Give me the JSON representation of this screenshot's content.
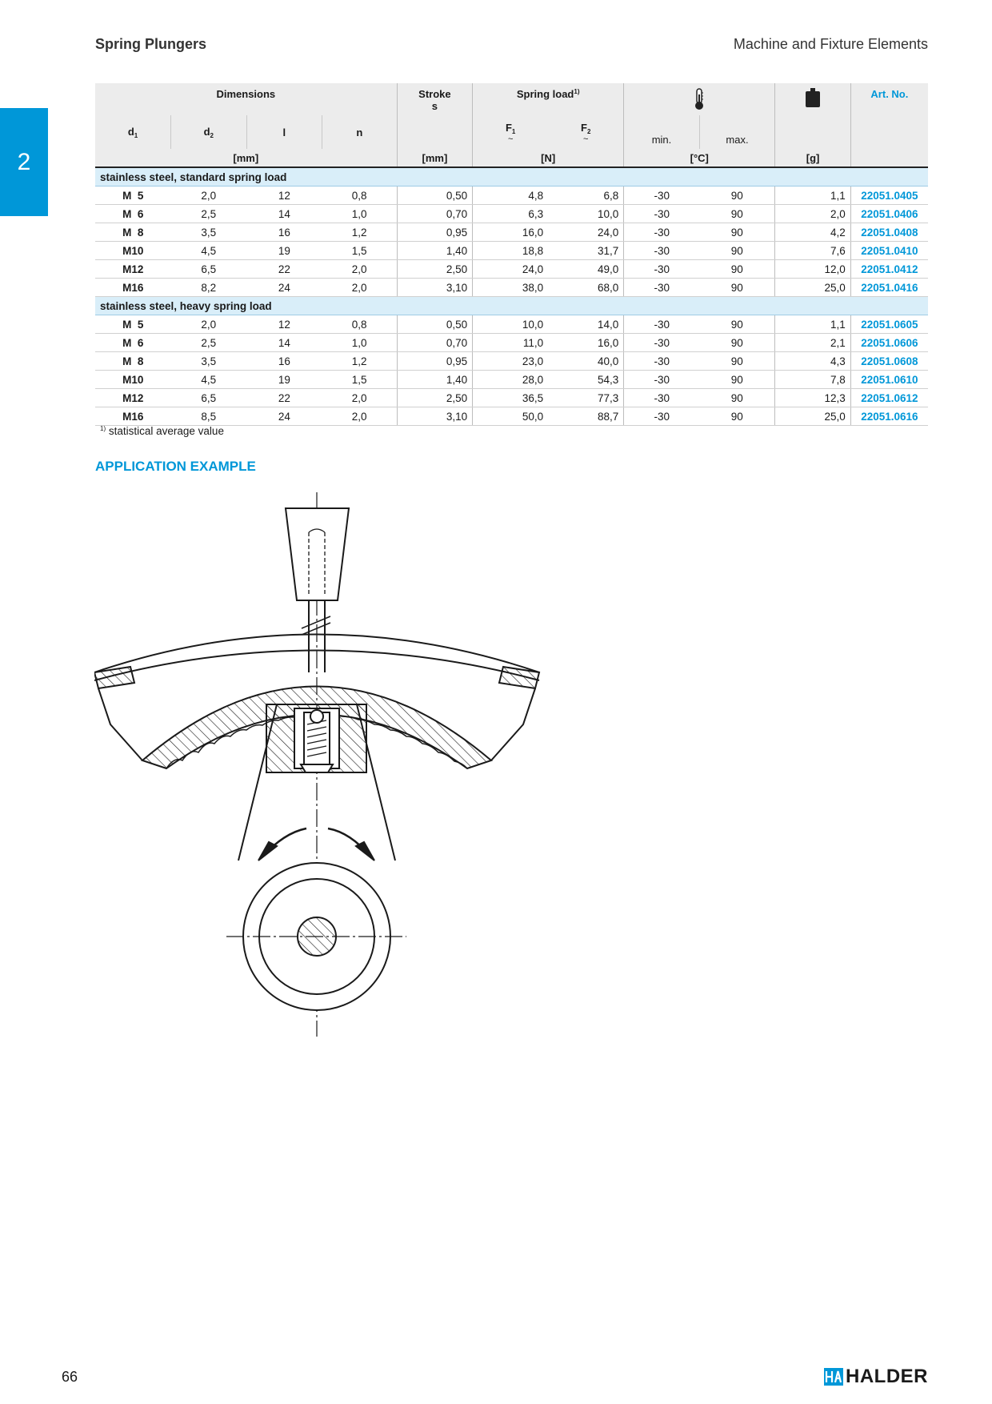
{
  "header": {
    "left": "Spring Plungers",
    "right": "Machine and Fixture Elements"
  },
  "chapter_tab": "2",
  "table": {
    "group_dimensions": "Dimensions",
    "stroke_label": "Stroke",
    "stroke_symbol": "s",
    "spring_load_label": "Spring load",
    "spring_load_note": "1)",
    "art_no_label": "Art. No.",
    "cols": {
      "d1": "d",
      "d1_sub": "1",
      "d2": "d",
      "d2_sub": "2",
      "l": "l",
      "n": "n",
      "f1": "F",
      "f1_sub": "1",
      "f1_tilde": "~",
      "f2": "F",
      "f2_sub": "2",
      "f2_tilde": "~",
      "min": "min.",
      "max": "max."
    },
    "units": {
      "dims": "[mm]",
      "stroke": "[mm]",
      "load": "[N]",
      "temp": "[°C]",
      "weight": "[g]"
    },
    "icons": {
      "temperature": "thermometer-icon",
      "weight": "weight-icon"
    },
    "groups": [
      {
        "title": "stainless steel, standard spring load",
        "rows": [
          [
            "M  5",
            "2,0",
            "12",
            "0,8",
            "0,50",
            "4,8",
            "6,8",
            "-30",
            "90",
            "1,1",
            "22051.0405"
          ],
          [
            "M  6",
            "2,5",
            "14",
            "1,0",
            "0,70",
            "6,3",
            "10,0",
            "-30",
            "90",
            "2,0",
            "22051.0406"
          ],
          [
            "M  8",
            "3,5",
            "16",
            "1,2",
            "0,95",
            "16,0",
            "24,0",
            "-30",
            "90",
            "4,2",
            "22051.0408"
          ],
          [
            "M10",
            "4,5",
            "19",
            "1,5",
            "1,40",
            "18,8",
            "31,7",
            "-30",
            "90",
            "7,6",
            "22051.0410"
          ],
          [
            "M12",
            "6,5",
            "22",
            "2,0",
            "2,50",
            "24,0",
            "49,0",
            "-30",
            "90",
            "12,0",
            "22051.0412"
          ],
          [
            "M16",
            "8,2",
            "24",
            "2,0",
            "3,10",
            "38,0",
            "68,0",
            "-30",
            "90",
            "25,0",
            "22051.0416"
          ]
        ]
      },
      {
        "title": "stainless steel, heavy spring load",
        "rows": [
          [
            "M  5",
            "2,0",
            "12",
            "0,8",
            "0,50",
            "10,0",
            "14,0",
            "-30",
            "90",
            "1,1",
            "22051.0605"
          ],
          [
            "M  6",
            "2,5",
            "14",
            "1,0",
            "0,70",
            "11,0",
            "16,0",
            "-30",
            "90",
            "2,1",
            "22051.0606"
          ],
          [
            "M  8",
            "3,5",
            "16",
            "1,2",
            "0,95",
            "23,0",
            "40,0",
            "-30",
            "90",
            "4,3",
            "22051.0608"
          ],
          [
            "M10",
            "4,5",
            "19",
            "1,5",
            "1,40",
            "28,0",
            "54,3",
            "-30",
            "90",
            "7,8",
            "22051.0610"
          ],
          [
            "M12",
            "6,5",
            "22",
            "2,0",
            "2,50",
            "36,5",
            "77,3",
            "-30",
            "90",
            "12,3",
            "22051.0612"
          ],
          [
            "M16",
            "8,5",
            "24",
            "2,0",
            "3,10",
            "50,0",
            "88,7",
            "-30",
            "90",
            "25,0",
            "22051.0616"
          ]
        ]
      }
    ]
  },
  "footnote": {
    "mark": "1)",
    "text": " statistical average value"
  },
  "section_title": "APPLICATION EXAMPLE",
  "footer": {
    "page_number": "66",
    "brand": "HALDER"
  },
  "colors": {
    "accent": "#0097d8",
    "group_bg": "#d9eef9",
    "header_bg": "#ececec"
  }
}
